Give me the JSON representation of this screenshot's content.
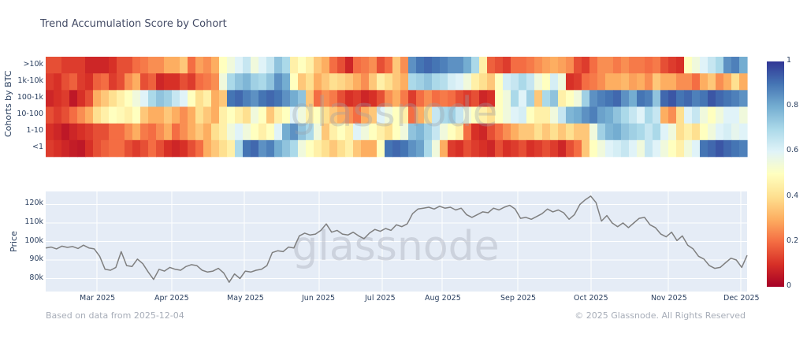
{
  "title": "Trend Accumulation Score by Cohort",
  "heatmap": {
    "ylabel": "Cohorts by BTC",
    "rows": [
      ">10k",
      "1k-10k",
      "100-1k",
      "10-100",
      "1-10",
      "<1"
    ]
  },
  "price": {
    "ylabel": "Price",
    "yticks": [
      "120k",
      "110k",
      "100k",
      "90k",
      "80k"
    ],
    "watermark": "glassnode"
  },
  "xticks": [
    "Mar 2025",
    "Apr 2025",
    "May 2025",
    "Jun 2025",
    "Jul 2025",
    "Aug 2025",
    "Sep 2025",
    "Oct 2025",
    "Nov 2025",
    "Dec 2025"
  ],
  "colorbar": {
    "ticks": [
      "1",
      "0.8",
      "0.6",
      "0.4",
      "0.2",
      "0"
    ]
  },
  "footer": {
    "left": "Based on data from 2025-12-04",
    "right": "© 2025 Glassnode. All Rights Reserved"
  },
  "colors": {
    "plot_bg": "#e5ecf6",
    "grid": "#ffffff",
    "line": "#7f7f7f",
    "scale": [
      "#a50026",
      "#d73027",
      "#f46d43",
      "#fdae61",
      "#fee090",
      "#ffffbf",
      "#e0f3f8",
      "#abd9e9",
      "#74add1",
      "#4575b4",
      "#313695"
    ]
  },
  "chart_data": [
    {
      "type": "heatmap",
      "title": "Trend Accumulation Score by Cohort",
      "ylabel": "Cohorts by BTC",
      "categories_y": [
        ">10k",
        "1k-10k",
        "100-1k",
        "10-100",
        "1-10",
        "<1"
      ],
      "x_range": [
        "2025-02-12",
        "2025-12-04"
      ],
      "colorscale_range": [
        0,
        1
      ],
      "values": [
        [
          0.15,
          0.15,
          0.12,
          0.12,
          0.12,
          0.08,
          0.08,
          0.08,
          0.1,
          0.15,
          0.15,
          0.2,
          0.22,
          0.25,
          0.25,
          0.3,
          0.3,
          0.35,
          0.2,
          0.28,
          0.25,
          0.3,
          0.5,
          0.55,
          0.6,
          0.65,
          0.55,
          0.6,
          0.65,
          0.75,
          0.7,
          0.45,
          0.5,
          0.45,
          0.35,
          0.3,
          0.2,
          0.15,
          0.08,
          0.2,
          0.22,
          0.25,
          0.15,
          0.2,
          0.35,
          0.25,
          0.85,
          0.9,
          0.92,
          0.9,
          0.88,
          0.85,
          0.85,
          0.8,
          0.7,
          0.45,
          0.18,
          0.15,
          0.12,
          0.2,
          0.2,
          0.22,
          0.25,
          0.28,
          0.3,
          0.28,
          0.25,
          0.15,
          0.12,
          0.2,
          0.25,
          0.25,
          0.22,
          0.25,
          0.22,
          0.22,
          0.2,
          0.22,
          0.15,
          0.12,
          0.1,
          0.5,
          0.55,
          0.6,
          0.65,
          0.7,
          0.85,
          0.88,
          0.8
        ],
        [
          0.12,
          0.1,
          0.15,
          0.18,
          0.12,
          0.1,
          0.18,
          0.2,
          0.12,
          0.15,
          0.25,
          0.3,
          0.15,
          0.18,
          0.08,
          0.1,
          0.1,
          0.15,
          0.12,
          0.2,
          0.22,
          0.25,
          0.55,
          0.7,
          0.75,
          0.78,
          0.72,
          0.7,
          0.75,
          0.85,
          0.8,
          0.5,
          0.35,
          0.4,
          0.3,
          0.35,
          0.4,
          0.38,
          0.35,
          0.3,
          0.25,
          0.35,
          0.45,
          0.4,
          0.35,
          0.3,
          0.7,
          0.72,
          0.75,
          0.7,
          0.68,
          0.62,
          0.6,
          0.55,
          0.45,
          0.4,
          0.35,
          0.5,
          0.62,
          0.65,
          0.7,
          0.65,
          0.55,
          0.5,
          0.62,
          0.55,
          0.1,
          0.12,
          0.2,
          0.22,
          0.25,
          0.3,
          0.3,
          0.32,
          0.28,
          0.3,
          0.25,
          0.35,
          0.3,
          0.3,
          0.25,
          0.25,
          0.2,
          0.3,
          0.35,
          0.25,
          0.3,
          0.4,
          0.3
        ],
        [
          0.08,
          0.1,
          0.12,
          0.05,
          0.1,
          0.15,
          0.3,
          0.35,
          0.4,
          0.45,
          0.5,
          0.55,
          0.6,
          0.7,
          0.75,
          0.72,
          0.65,
          0.6,
          0.5,
          0.4,
          0.45,
          0.3,
          0.35,
          0.9,
          0.92,
          0.88,
          0.85,
          0.9,
          0.92,
          0.9,
          0.85,
          0.8,
          0.75,
          0.35,
          0.2,
          0.25,
          0.22,
          0.15,
          0.1,
          0.12,
          0.08,
          0.1,
          0.15,
          0.25,
          0.3,
          0.22,
          0.12,
          0.2,
          0.25,
          0.2,
          0.22,
          0.2,
          0.15,
          0.12,
          0.15,
          0.08,
          0.1,
          0.5,
          0.55,
          0.7,
          0.6,
          0.72,
          0.35,
          0.7,
          0.75,
          0.45,
          0.5,
          0.55,
          0.72,
          0.85,
          0.88,
          0.9,
          0.92,
          0.85,
          0.8,
          0.9,
          0.88,
          0.75,
          0.92,
          0.95,
          0.9,
          0.92,
          0.88,
          0.9,
          0.95,
          0.92,
          0.9,
          0.88,
          0.85
        ],
        [
          0.15,
          0.12,
          0.15,
          0.2,
          0.25,
          0.3,
          0.4,
          0.45,
          0.5,
          0.48,
          0.45,
          0.5,
          0.35,
          0.3,
          0.3,
          0.35,
          0.3,
          0.25,
          0.3,
          0.4,
          0.35,
          0.3,
          0.45,
          0.5,
          0.45,
          0.4,
          0.55,
          0.5,
          0.35,
          0.45,
          0.5,
          0.6,
          0.55,
          0.45,
          0.5,
          0.4,
          0.35,
          0.3,
          0.25,
          0.2,
          0.3,
          0.35,
          0.6,
          0.55,
          0.5,
          0.45,
          0.2,
          0.3,
          0.4,
          0.65,
          0.7,
          0.72,
          0.65,
          0.55,
          0.5,
          0.45,
          0.4,
          0.5,
          0.55,
          0.6,
          0.62,
          0.5,
          0.45,
          0.45,
          0.55,
          0.65,
          0.78,
          0.8,
          0.85,
          0.88,
          0.82,
          0.8,
          0.75,
          0.7,
          0.65,
          0.6,
          0.7,
          0.65,
          0.3,
          0.25,
          0.4,
          0.6,
          0.65,
          0.55,
          0.5,
          0.55,
          0.6,
          0.6,
          0.55
        ],
        [
          0.1,
          0.08,
          0.05,
          0.08,
          0.1,
          0.12,
          0.15,
          0.15,
          0.2,
          0.2,
          0.25,
          0.3,
          0.22,
          0.2,
          0.25,
          0.3,
          0.2,
          0.25,
          0.3,
          0.35,
          0.3,
          0.4,
          0.45,
          0.55,
          0.6,
          0.55,
          0.5,
          0.45,
          0.5,
          0.6,
          0.8,
          0.85,
          0.75,
          0.7,
          0.55,
          0.35,
          0.45,
          0.5,
          0.45,
          0.6,
          0.55,
          0.5,
          0.45,
          0.4,
          0.5,
          0.55,
          0.75,
          0.78,
          0.72,
          0.65,
          0.55,
          0.5,
          0.45,
          0.2,
          0.1,
          0.08,
          0.15,
          0.2,
          0.25,
          0.3,
          0.35,
          0.35,
          0.4,
          0.35,
          0.4,
          0.35,
          0.4,
          0.35,
          0.35,
          0.55,
          0.72,
          0.78,
          0.8,
          0.75,
          0.72,
          0.7,
          0.65,
          0.7,
          0.6,
          0.55,
          0.4,
          0.45,
          0.4,
          0.5,
          0.55,
          0.6,
          0.62,
          0.58,
          0.6
        ],
        [
          0.12,
          0.1,
          0.08,
          0.06,
          0.05,
          0.1,
          0.15,
          0.18,
          0.2,
          0.2,
          0.15,
          0.12,
          0.15,
          0.2,
          0.15,
          0.1,
          0.08,
          0.1,
          0.15,
          0.2,
          0.3,
          0.35,
          0.4,
          0.45,
          0.7,
          0.9,
          0.92,
          0.85,
          0.88,
          0.8,
          0.75,
          0.7,
          0.55,
          0.5,
          0.45,
          0.4,
          0.35,
          0.4,
          0.45,
          0.35,
          0.3,
          0.3,
          0.5,
          0.9,
          0.92,
          0.9,
          0.85,
          0.82,
          0.7,
          0.55,
          0.3,
          0.12,
          0.1,
          0.15,
          0.12,
          0.1,
          0.08,
          0.15,
          0.1,
          0.12,
          0.15,
          0.1,
          0.12,
          0.15,
          0.12,
          0.08,
          0.15,
          0.2,
          0.35,
          0.5,
          0.55,
          0.6,
          0.62,
          0.65,
          0.6,
          0.55,
          0.65,
          0.6,
          0.55,
          0.5,
          0.45,
          0.55,
          0.6,
          0.9,
          0.92,
          0.95,
          0.92,
          0.9,
          0.88
        ]
      ]
    },
    {
      "type": "line",
      "ylabel": "Price",
      "x_range": [
        "2025-02-12",
        "2025-12-04"
      ],
      "ylim": [
        73000,
        127000
      ],
      "yticks": [
        80000,
        90000,
        100000,
        110000,
        120000
      ],
      "xticks": [
        "Mar 2025",
        "Apr 2025",
        "May 2025",
        "Jun 2025",
        "Jul 2025",
        "Aug 2025",
        "Sep 2025",
        "Oct 2025",
        "Nov 2025",
        "Dec 2025"
      ],
      "values": [
        96500,
        97000,
        96000,
        97500,
        96800,
        97300,
        96200,
        98000,
        96500,
        96000,
        92000,
        85000,
        84500,
        86000,
        94500,
        87000,
        86500,
        90500,
        88000,
        83500,
        79500,
        85000,
        84000,
        86000,
        85000,
        84500,
        86500,
        87500,
        87000,
        84500,
        83500,
        84000,
        85500,
        83000,
        78000,
        82500,
        80000,
        84000,
        83500,
        84500,
        85000,
        87000,
        94000,
        95000,
        94500,
        97000,
        96500,
        103000,
        104500,
        103500,
        104000,
        106000,
        109500,
        105000,
        106000,
        104000,
        103500,
        105000,
        103000,
        101500,
        104500,
        106500,
        105500,
        107000,
        106000,
        109000,
        108000,
        109500,
        115000,
        117500,
        118000,
        118500,
        117500,
        119000,
        118000,
        118500,
        117000,
        118000,
        114500,
        113000,
        114500,
        116000,
        115500,
        118000,
        117000,
        118500,
        119500,
        117500,
        112500,
        113000,
        112000,
        113500,
        115000,
        117500,
        116000,
        117000,
        115500,
        112000,
        114500,
        120000,
        122500,
        124500,
        121000,
        111000,
        114000,
        110000,
        108000,
        110000,
        107500,
        110000,
        112500,
        113000,
        109000,
        107500,
        104000,
        102500,
        105000,
        100500,
        103000,
        98000,
        96000,
        92000,
        90500,
        87000,
        85500,
        86000,
        88500,
        91000,
        90000,
        86000,
        92500
      ]
    }
  ]
}
